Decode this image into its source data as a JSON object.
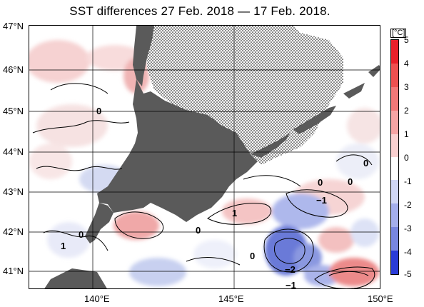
{
  "title": "SST differences 27 Feb. 2018 — 17 Feb. 2018.",
  "latitude_labels": [
    "47°N",
    "46°N",
    "45°N",
    "44°N",
    "43°N",
    "42°N",
    "41°N"
  ],
  "longitude_labels": [
    "140°E",
    "145°E",
    "150°E"
  ],
  "colorbar": {
    "unit": "[°C]",
    "ticks": [
      "5",
      "4",
      "3",
      "2",
      "1",
      "0",
      "-1",
      "-2",
      "-3",
      "-4",
      "-5"
    ],
    "colors": {
      "warm_max": "#e8202a",
      "neutral": "#ffffff",
      "cold_max": "#2a3cd8"
    }
  },
  "contour_labels": {
    "l_0a": "0",
    "l_0b": "0",
    "l_0c": "0",
    "l_0d": "0",
    "l_0e": "0",
    "l_0f": "0",
    "l_0g": "0",
    "l_1a": "1",
    "l_1b": "1",
    "l_m1a": "−1",
    "l_m1b": "−1",
    "l_m2": "−2"
  },
  "colors": {
    "land": "#5a5a5a",
    "sea_ice_dots": "#000000",
    "grid": "#000000"
  }
}
